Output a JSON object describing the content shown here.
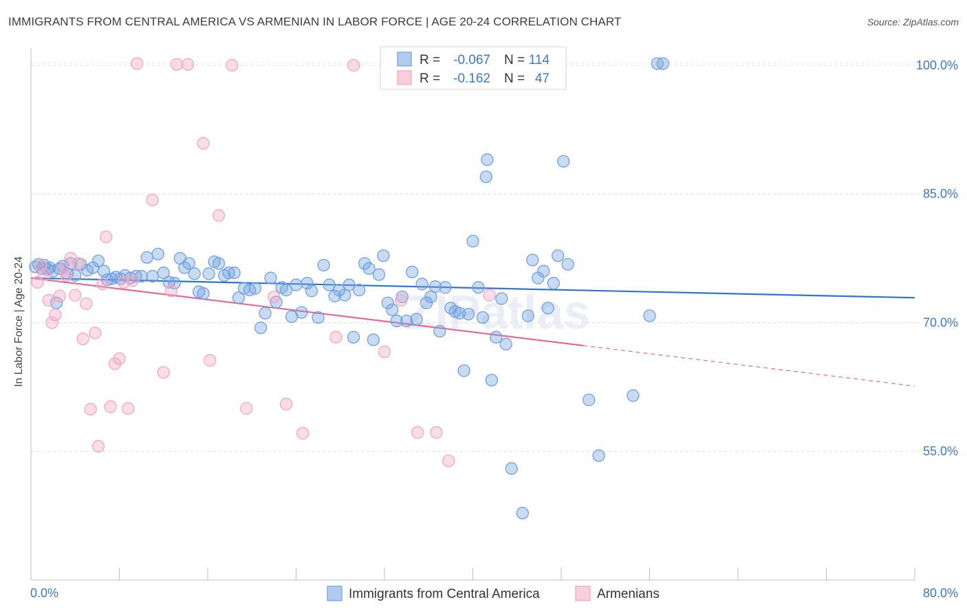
{
  "title": "IMMIGRANTS FROM CENTRAL AMERICA VS ARMENIAN IN LABOR FORCE | AGE 20-24 CORRELATION CHART",
  "source": "Source: ZipAtlas.com",
  "watermark": "ZIPatlas",
  "chart_data": {
    "type": "scatter",
    "title": "IMMIGRANTS FROM CENTRAL AMERICA VS ARMENIAN IN LABOR FORCE | AGE 20-24 CORRELATION CHART",
    "xlabel": "",
    "ylabel": "In Labor Force | Age 20-24",
    "xlim": [
      0,
      80
    ],
    "ylim": [
      40,
      102
    ],
    "x_tick_labels": [
      "0.0%",
      "80.0%"
    ],
    "y_ticks": [
      55,
      70,
      85,
      100
    ],
    "y_tick_labels": [
      "55.0%",
      "70.0%",
      "85.0%",
      "100.0%"
    ],
    "grid": true,
    "legend_position": "top-center",
    "series": [
      {
        "name": "Immigrants from Central America",
        "color": "#6fa0e0",
        "line_color": "#2f74d0",
        "R": "-0.067",
        "N": "114",
        "trend": {
          "x0": 0,
          "y0": 75.2,
          "x1": 80,
          "y1": 72.9,
          "dashed_from": null
        },
        "points": [
          [
            0.4,
            76.5
          ],
          [
            0.7,
            76.8
          ],
          [
            1.0,
            76.3
          ],
          [
            1.2,
            76.7
          ],
          [
            1.5,
            76.2
          ],
          [
            1.7,
            76.4
          ],
          [
            2.0,
            76.0
          ],
          [
            2.3,
            72.3
          ],
          [
            2.6,
            76.3
          ],
          [
            2.9,
            76.6
          ],
          [
            3.3,
            75.7
          ],
          [
            3.6,
            76.9
          ],
          [
            4.0,
            75.5
          ],
          [
            4.5,
            76.8
          ],
          [
            5.1,
            76.1
          ],
          [
            5.6,
            76.4
          ],
          [
            6.1,
            77.2
          ],
          [
            6.6,
            76.0
          ],
          [
            6.9,
            75.0
          ],
          [
            7.3,
            75.1
          ],
          [
            7.7,
            75.3
          ],
          [
            8.1,
            75.1
          ],
          [
            8.5,
            75.5
          ],
          [
            9.0,
            75.2
          ],
          [
            9.5,
            75.4
          ],
          [
            10.0,
            75.4
          ],
          [
            10.5,
            77.6
          ],
          [
            11.0,
            75.4
          ],
          [
            11.5,
            78.0
          ],
          [
            12.0,
            75.8
          ],
          [
            12.5,
            74.7
          ],
          [
            13.0,
            74.6
          ],
          [
            13.5,
            77.5
          ],
          [
            13.9,
            76.4
          ],
          [
            14.3,
            76.9
          ],
          [
            14.8,
            75.7
          ],
          [
            15.2,
            73.6
          ],
          [
            15.6,
            73.4
          ],
          [
            16.1,
            75.7
          ],
          [
            16.6,
            77.1
          ],
          [
            17.0,
            76.9
          ],
          [
            17.5,
            75.5
          ],
          [
            17.9,
            75.8
          ],
          [
            18.4,
            75.8
          ],
          [
            18.8,
            72.9
          ],
          [
            19.3,
            74.0
          ],
          [
            19.8,
            73.8
          ],
          [
            20.3,
            74.0
          ],
          [
            20.8,
            69.4
          ],
          [
            21.2,
            71.1
          ],
          [
            21.7,
            75.2
          ],
          [
            22.2,
            72.4
          ],
          [
            22.7,
            74.1
          ],
          [
            23.1,
            73.8
          ],
          [
            23.6,
            70.7
          ],
          [
            24.0,
            74.4
          ],
          [
            24.5,
            71.2
          ],
          [
            25.0,
            74.6
          ],
          [
            25.4,
            73.7
          ],
          [
            26.0,
            70.6
          ],
          [
            26.5,
            76.7
          ],
          [
            27.0,
            74.4
          ],
          [
            27.5,
            73.1
          ],
          [
            27.9,
            73.8
          ],
          [
            28.4,
            73.2
          ],
          [
            28.8,
            74.4
          ],
          [
            29.2,
            68.3
          ],
          [
            29.7,
            73.8
          ],
          [
            30.2,
            76.9
          ],
          [
            30.6,
            76.3
          ],
          [
            31.0,
            68.0
          ],
          [
            31.5,
            75.6
          ],
          [
            31.9,
            77.8
          ],
          [
            32.3,
            72.3
          ],
          [
            32.7,
            71.5
          ],
          [
            33.1,
            70.2
          ],
          [
            33.6,
            73.0
          ],
          [
            34.0,
            70.2
          ],
          [
            34.5,
            75.9
          ],
          [
            34.9,
            70.4
          ],
          [
            35.4,
            74.5
          ],
          [
            35.8,
            72.3
          ],
          [
            36.2,
            73.0
          ],
          [
            36.6,
            74.2
          ],
          [
            37.0,
            69.0
          ],
          [
            37.5,
            74.1
          ],
          [
            38.0,
            71.7
          ],
          [
            38.4,
            71.3
          ],
          [
            38.8,
            71.1
          ],
          [
            39.2,
            64.4
          ],
          [
            39.6,
            71.0
          ],
          [
            40.0,
            79.5
          ],
          [
            40.5,
            74.1
          ],
          [
            40.9,
            70.6
          ],
          [
            41.3,
            89.0
          ],
          [
            41.7,
            63.3
          ],
          [
            42.1,
            68.3
          ],
          [
            42.6,
            72.8
          ],
          [
            43.0,
            67.5
          ],
          [
            43.5,
            53.0
          ],
          [
            44.5,
            47.8
          ],
          [
            45.0,
            70.8
          ],
          [
            45.4,
            77.3
          ],
          [
            45.9,
            75.2
          ],
          [
            46.4,
            76.0
          ],
          [
            46.8,
            71.7
          ],
          [
            47.3,
            74.6
          ],
          [
            47.7,
            77.8
          ],
          [
            48.2,
            88.8
          ],
          [
            48.6,
            76.8
          ],
          [
            50.5,
            61.0
          ],
          [
            51.4,
            54.5
          ],
          [
            54.5,
            61.5
          ],
          [
            56.0,
            70.8
          ],
          [
            41.2,
            87.0
          ],
          [
            40.2,
            100.3
          ],
          [
            56.7,
            100.2
          ],
          [
            57.2,
            100.2
          ]
        ]
      },
      {
        "name": "Armenians",
        "color": "#f3a6bf",
        "line_color": "#e26a95",
        "R": "-0.162",
        "N": "47",
        "trend": {
          "x0": 0,
          "y0": 75.2,
          "x1": 80,
          "y1": 62.6,
          "dashed_from": 50
        },
        "points": [
          [
            0.6,
            74.7
          ],
          [
            0.9,
            76.6
          ],
          [
            1.2,
            75.6
          ],
          [
            1.6,
            72.6
          ],
          [
            1.9,
            70.0
          ],
          [
            2.2,
            70.9
          ],
          [
            2.6,
            73.1
          ],
          [
            2.9,
            76.3
          ],
          [
            3.2,
            75.5
          ],
          [
            3.6,
            77.5
          ],
          [
            4.0,
            73.2
          ],
          [
            4.3,
            76.9
          ],
          [
            4.7,
            68.1
          ],
          [
            5.0,
            72.2
          ],
          [
            5.4,
            59.9
          ],
          [
            5.8,
            68.8
          ],
          [
            6.1,
            55.6
          ],
          [
            6.5,
            74.5
          ],
          [
            6.8,
            80.0
          ],
          [
            7.2,
            60.2
          ],
          [
            7.6,
            65.2
          ],
          [
            8.0,
            65.8
          ],
          [
            8.4,
            74.7
          ],
          [
            8.8,
            60.0
          ],
          [
            9.2,
            74.9
          ],
          [
            9.6,
            100.2
          ],
          [
            11.0,
            84.3
          ],
          [
            12.0,
            64.2
          ],
          [
            12.7,
            73.7
          ],
          [
            13.2,
            100.1
          ],
          [
            14.2,
            100.1
          ],
          [
            15.6,
            90.9
          ],
          [
            16.2,
            65.6
          ],
          [
            17.0,
            82.5
          ],
          [
            18.2,
            100.0
          ],
          [
            19.5,
            60.0
          ],
          [
            22.0,
            73.0
          ],
          [
            23.1,
            60.5
          ],
          [
            24.6,
            57.1
          ],
          [
            27.6,
            68.3
          ],
          [
            29.2,
            100.0
          ],
          [
            32.0,
            66.6
          ],
          [
            33.5,
            72.6
          ],
          [
            35.0,
            57.2
          ],
          [
            36.7,
            57.2
          ],
          [
            37.8,
            53.9
          ],
          [
            41.5,
            73.2
          ]
        ]
      }
    ]
  }
}
